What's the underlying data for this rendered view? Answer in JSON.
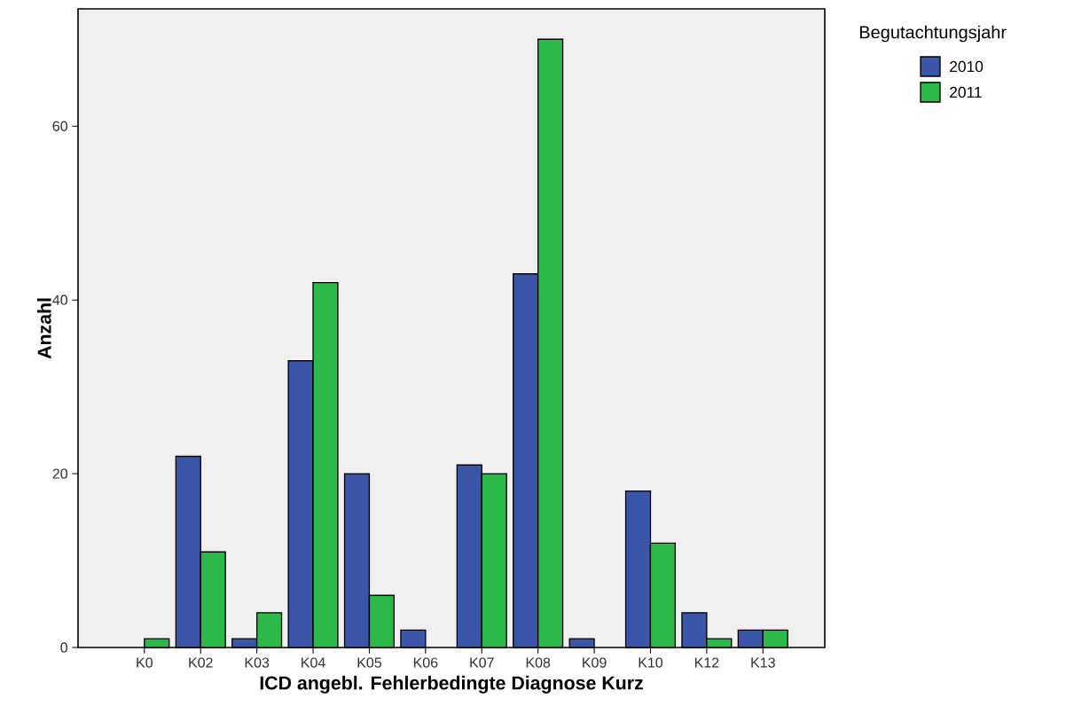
{
  "chart_data": {
    "type": "bar",
    "xlabel": "ICD angebl. Fehlerbedingte Diagnose Kurz",
    "ylabel": "Anzahl",
    "legend_title": "Begutachtungsjahr",
    "legend": "top right",
    "categories": [
      "K0",
      "K02",
      "K03",
      "K04",
      "K05",
      "K06",
      "K07",
      "K08",
      "K09",
      "K10",
      "K12",
      "K13"
    ],
    "series": [
      {
        "name": "2010",
        "color": "#3b56a8",
        "values": [
          null,
          22,
          1,
          33,
          20,
          2,
          21,
          43,
          1,
          18,
          4,
          2
        ]
      },
      {
        "name": "2011",
        "color": "#2db84a",
        "values": [
          1,
          11,
          4,
          42,
          6,
          null,
          20,
          70,
          null,
          12,
          1,
          2
        ]
      }
    ],
    "ylim": [
      0,
      73.5
    ],
    "yticks": [
      0,
      20,
      40,
      60
    ],
    "grid": false
  }
}
